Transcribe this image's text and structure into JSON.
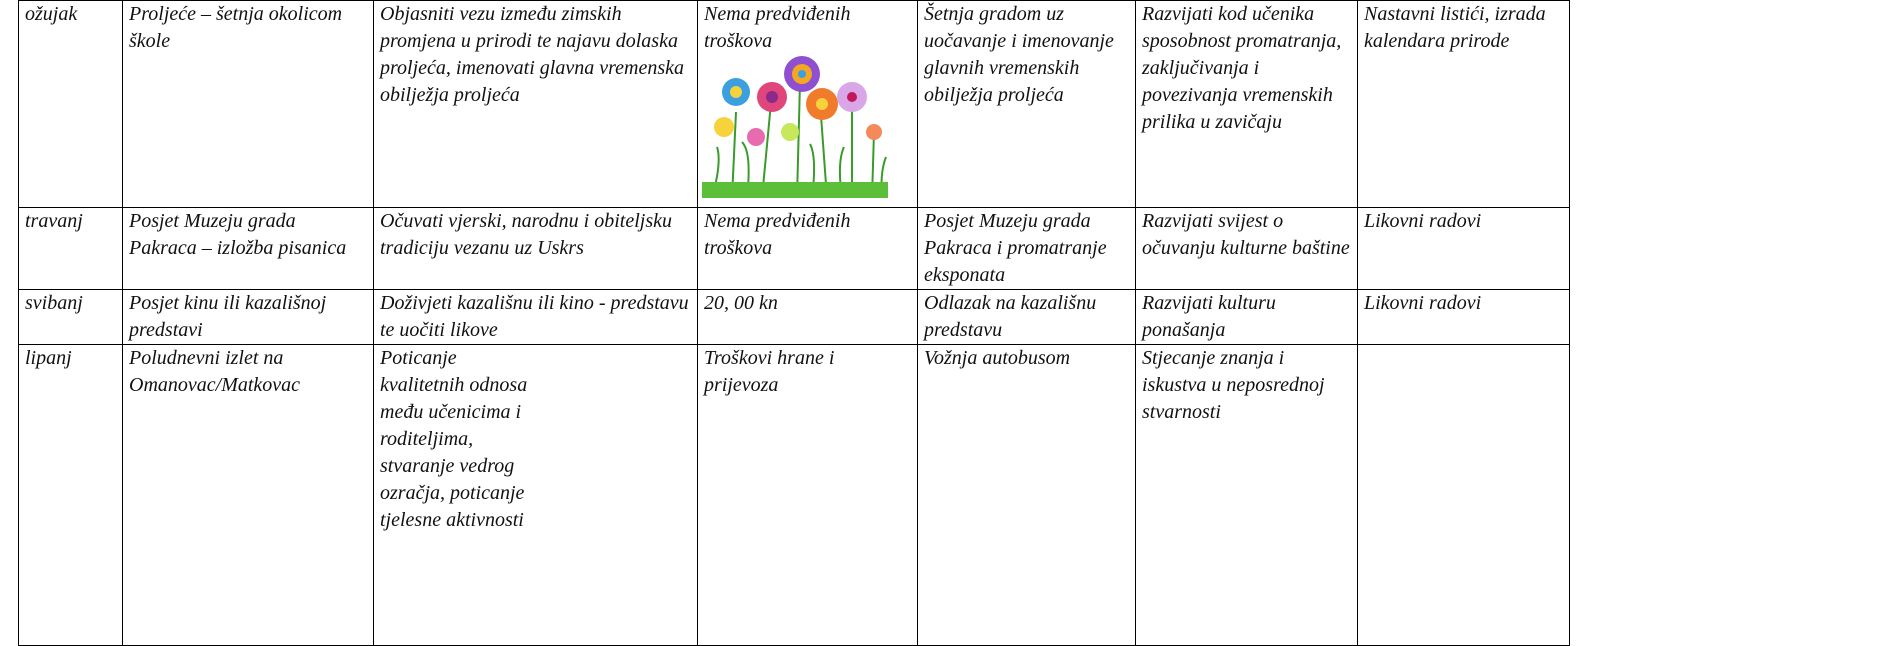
{
  "table": {
    "rows": [
      [
        "ožujak",
        "Proljeće – šetnja okolicom škole",
        "Objasniti vezu između zimskih promjena u prirodi te najavu dolaska proljeća, imenovati glavna vremenska obilježja proljeća",
        "Nema predviđenih troškova",
        "Šetnja gradom uz uočavanje i imenovanje glavnih vremenskih obilježja proljeća",
        "Razvijati kod učenika sposobnost promatranja, zaključivanja i povezivanja vremenskih prilika u zavičaju",
        "Nastavni listići, izrada kalendara prirode"
      ],
      [
        "travanj",
        "Posjet Muzeju grada Pakraca – izložba pisanica",
        "Očuvati vjerski, narodnu i obiteljsku tradiciju vezanu uz Uskrs",
        "Nema predviđenih troškova",
        "Posjet Muzeju grada Pakraca i promatranje eksponata",
        "Razvijati svijest o očuvanju kulturne baštine",
        "Likovni radovi"
      ],
      [
        "svibanj",
        "Posjet kinu ili kazališnoj predstavi",
        "Doživjeti kazališnu ili kino - predstavu te uočiti likove",
        "20, 00 kn",
        "Odlazak na kazališnu predstavu",
        "Razvijati kulturu ponašanja",
        "Likovni radovi"
      ],
      [
        "lipanj",
        "Poludnevni izlet na Omanovac/Matkovac",
        "Poticanje\nkvalitetnih odnosa\nmeđu učenicima i\nroditeljima,\nstvaranje vedrog\nozračja, poticanje\ntjelesne aktivnosti",
        "Troškovi hrane i prijevoza",
        "Vožnja autobusom",
        "Stjecanje znanja i iskustva u neposrednoj stvarnosti"
      ]
    ]
  }
}
